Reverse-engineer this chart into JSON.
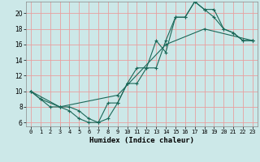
{
  "xlabel": "Humidex (Indice chaleur)",
  "bg_color": "#cce8e8",
  "grid_color": "#e8a0a0",
  "line_color": "#1a6858",
  "xlim": [
    -0.5,
    23.5
  ],
  "ylim": [
    5.5,
    21.5
  ],
  "yticks": [
    6,
    8,
    10,
    12,
    14,
    16,
    18,
    20
  ],
  "xticks": [
    0,
    1,
    2,
    3,
    4,
    5,
    6,
    7,
    8,
    9,
    10,
    11,
    12,
    13,
    14,
    15,
    16,
    17,
    18,
    19,
    20,
    21,
    22,
    23
  ],
  "line1_x": [
    0,
    1,
    2,
    3,
    4,
    5,
    6,
    7,
    8,
    9,
    10,
    11,
    12,
    13,
    14,
    15,
    16,
    17,
    18,
    19,
    20,
    21,
    22,
    23
  ],
  "line1_y": [
    10,
    9,
    8,
    8,
    7.5,
    6.5,
    6,
    6,
    6.5,
    8.5,
    11,
    13,
    13,
    16.5,
    15,
    19.5,
    19.5,
    21.5,
    20.5,
    19.5,
    18,
    17.5,
    16.5,
    16.5
  ],
  "line2_x": [
    0,
    1,
    3,
    4,
    5,
    6,
    7,
    8,
    9,
    10,
    11,
    12,
    13,
    14,
    15,
    16,
    17,
    18,
    19,
    20,
    21,
    22,
    23
  ],
  "line2_y": [
    10,
    9,
    8,
    8,
    7.5,
    6.5,
    6,
    8.5,
    8.5,
    11,
    11,
    13,
    13,
    16.5,
    19.5,
    19.5,
    21.5,
    20.5,
    20.5,
    18,
    17.5,
    16.5,
    16.5
  ],
  "line3_x": [
    0,
    3,
    9,
    14,
    18,
    23
  ],
  "line3_y": [
    10,
    8,
    9.5,
    16,
    18,
    16.5
  ],
  "xlabel_fontsize": 6.5,
  "tick_fontsize_x": 5.0,
  "tick_fontsize_y": 5.5
}
